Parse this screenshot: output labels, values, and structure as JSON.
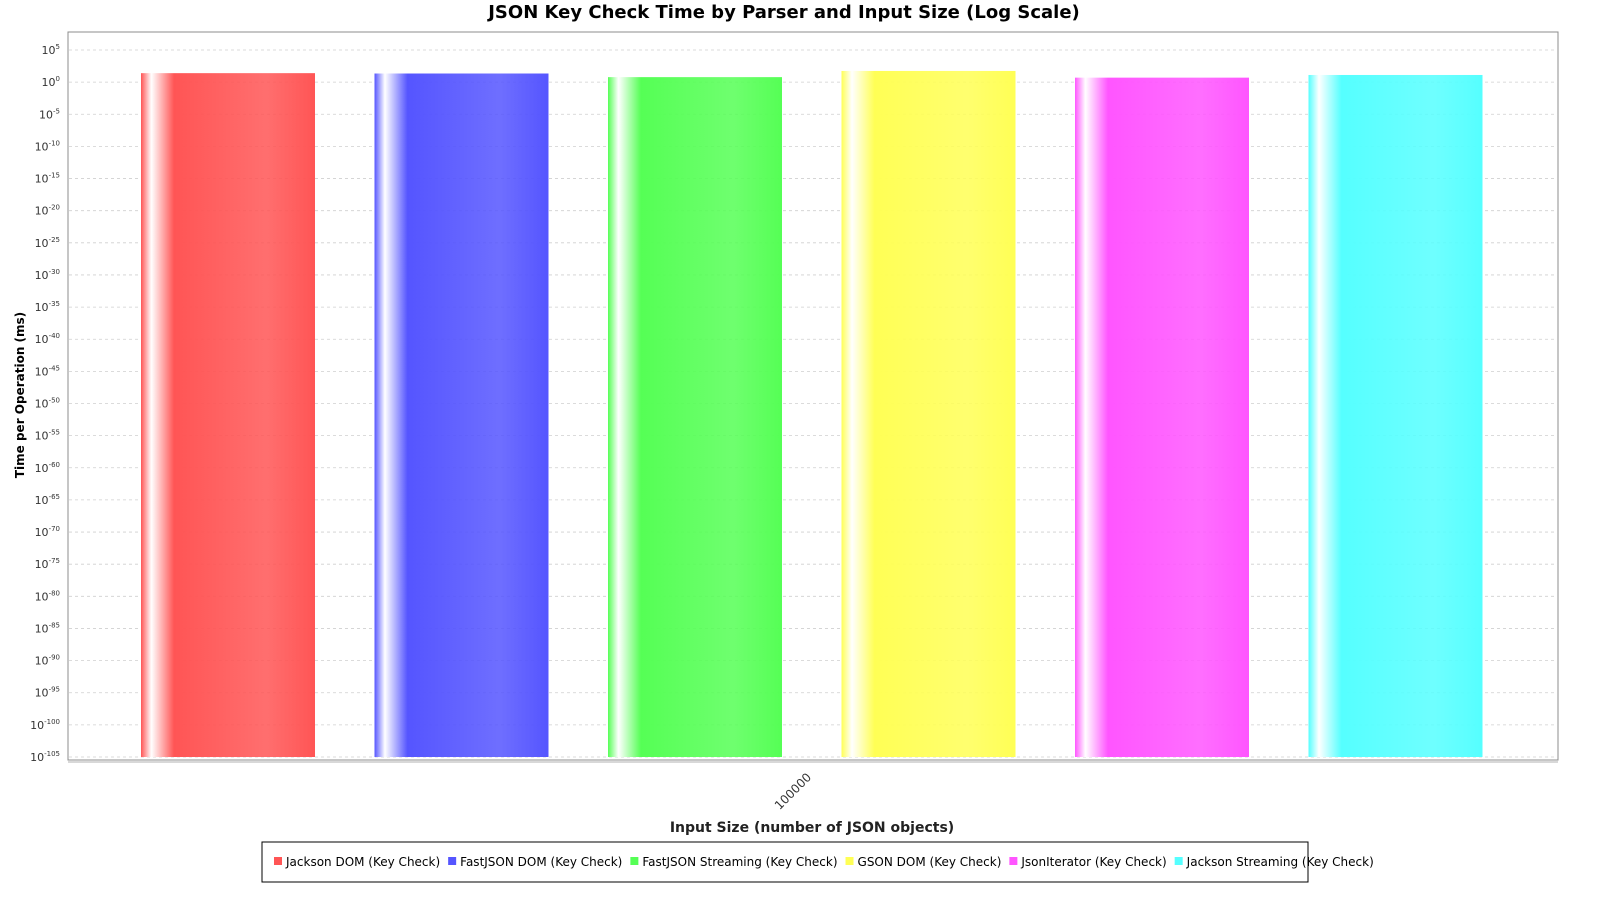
{
  "chart_data": {
    "type": "bar",
    "title": "JSON Key Check Time by Parser and Input Size (Log Scale)",
    "xlabel": "Input Size (number of JSON objects)",
    "ylabel": "Time per Operation (ms)",
    "yscale": "log",
    "ylim": [
      1e-105,
      100000.0
    ],
    "grid": true,
    "legend_position": "bottom",
    "categories": [
      "100000"
    ],
    "y_ticks": [
      {
        "base": "10",
        "exp": "5"
      },
      {
        "base": "10",
        "exp": "0"
      },
      {
        "base": "10",
        "exp": "-5"
      },
      {
        "base": "10",
        "exp": "-10"
      },
      {
        "base": "10",
        "exp": "-15"
      },
      {
        "base": "10",
        "exp": "-20"
      },
      {
        "base": "10",
        "exp": "-25"
      },
      {
        "base": "10",
        "exp": "-30"
      },
      {
        "base": "10",
        "exp": "-35"
      },
      {
        "base": "10",
        "exp": "-40"
      },
      {
        "base": "10",
        "exp": "-45"
      },
      {
        "base": "10",
        "exp": "-50"
      },
      {
        "base": "10",
        "exp": "-55"
      },
      {
        "base": "10",
        "exp": "-60"
      },
      {
        "base": "10",
        "exp": "-65"
      },
      {
        "base": "10",
        "exp": "-70"
      },
      {
        "base": "10",
        "exp": "-75"
      },
      {
        "base": "10",
        "exp": "-80"
      },
      {
        "base": "10",
        "exp": "-85"
      },
      {
        "base": "10",
        "exp": "-90"
      },
      {
        "base": "10",
        "exp": "-95"
      },
      {
        "base": "10",
        "exp": "-100"
      },
      {
        "base": "10",
        "exp": "-105"
      }
    ],
    "series": [
      {
        "name": "Jackson DOM (Key Check)",
        "color": "#ff5555",
        "values": [
          25
        ]
      },
      {
        "name": "FastJSON DOM (Key Check)",
        "color": "#5555ff",
        "values": [
          22
        ]
      },
      {
        "name": "FastJSON Streaming (Key Check)",
        "color": "#55ff55",
        "values": [
          6
        ]
      },
      {
        "name": "GSON DOM (Key Check)",
        "color": "#ffff55",
        "values": [
          55
        ]
      },
      {
        "name": "JsonIterator (Key Check)",
        "color": "#ff55ff",
        "values": [
          5
        ]
      },
      {
        "name": "Jackson Streaming (Key Check)",
        "color": "#55ffff",
        "values": [
          13
        ]
      }
    ]
  }
}
